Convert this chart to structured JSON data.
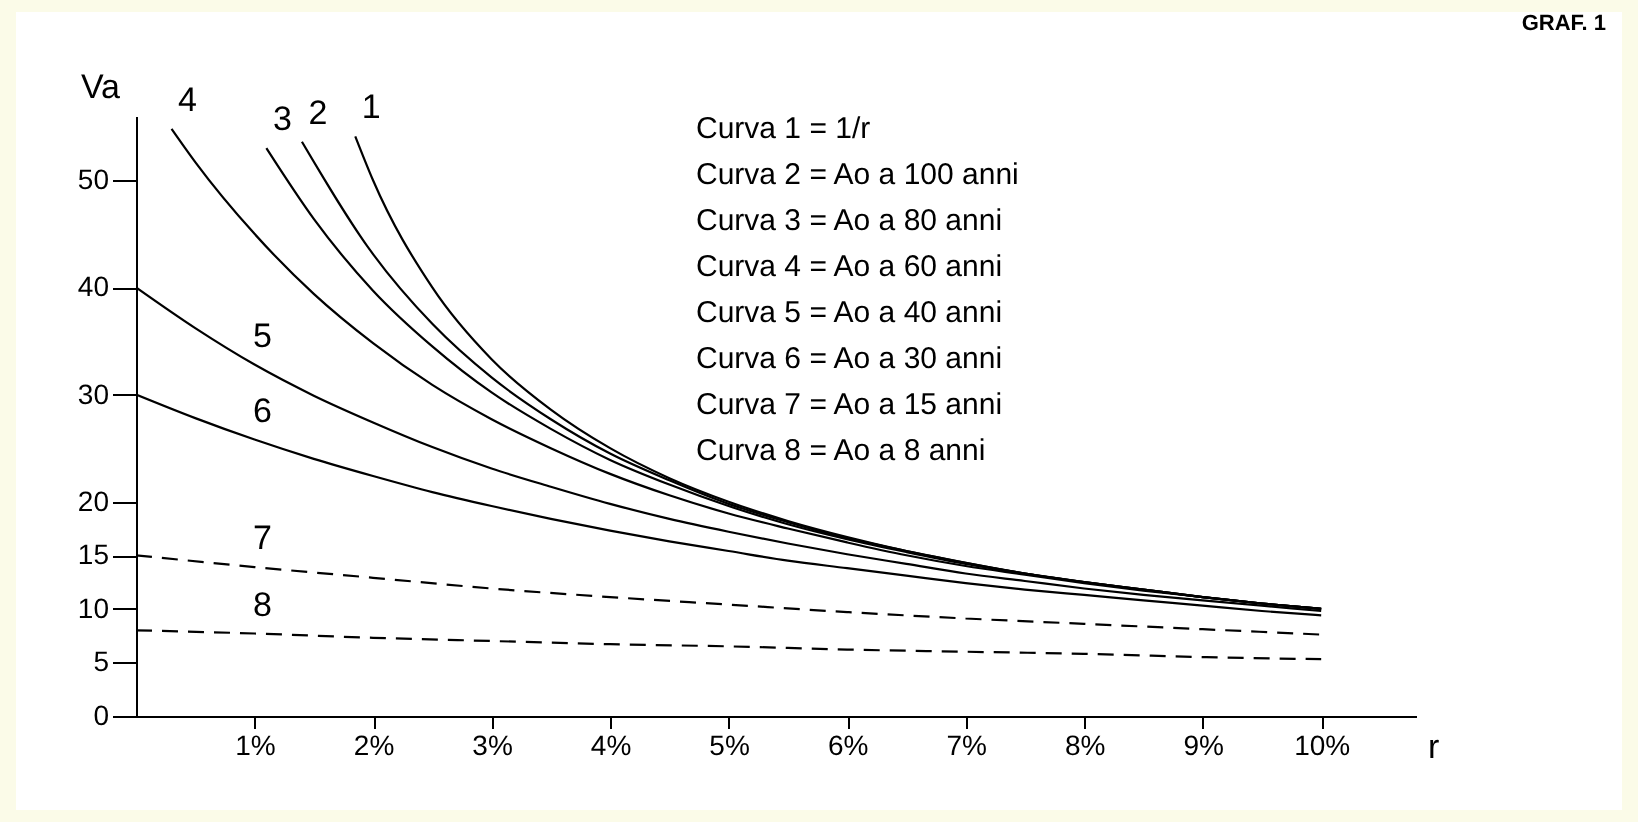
{
  "chart_data": {
    "type": "line",
    "title": "GRAF. 1",
    "xlabel": "r",
    "ylabel": "Va",
    "annotations": [
      "Curva 1 = 1/r",
      "Curva 2 = Ao a 100 anni",
      "Curva 3 = Ao a 80 anni",
      "Curva 4 = Ao a 60 anni",
      "Curva 5 = Ao a 40 anni",
      "Curva 6 = Ao a 30 anni",
      "Curva 7 = Ao a 15 anni",
      "Curva 8 = Ao a 8 anni"
    ],
    "xlim": [
      0,
      10.8
    ],
    "ylim": [
      0,
      56
    ],
    "xticks": [
      {
        "value": 1,
        "label": "1%"
      },
      {
        "value": 2,
        "label": "2%"
      },
      {
        "value": 3,
        "label": "3%"
      },
      {
        "value": 4,
        "label": "4%"
      },
      {
        "value": 5,
        "label": "5%"
      },
      {
        "value": 6,
        "label": "6%"
      },
      {
        "value": 7,
        "label": "7%"
      },
      {
        "value": 8,
        "label": "8%"
      },
      {
        "value": 9,
        "label": "9%"
      },
      {
        "value": 10,
        "label": "10%"
      }
    ],
    "yticks": [
      0,
      5,
      10,
      15,
      20,
      30,
      40,
      50
    ],
    "grid": false,
    "legend": false,
    "marker": "none",
    "series": [
      {
        "name": "1",
        "color": "#000000",
        "line_style": "solid",
        "x": [
          1.85,
          2,
          2.5,
          3,
          3.5,
          4,
          4.5,
          5,
          5.5,
          6,
          6.5,
          7,
          7.5,
          8,
          8.5,
          9,
          9.5,
          10
        ],
        "values": [
          54.1,
          50,
          40,
          33.3,
          28.6,
          25,
          22.2,
          20,
          18.2,
          16.7,
          15.4,
          14.3,
          13.3,
          12.5,
          11.8,
          11.1,
          10.5,
          10
        ]
      },
      {
        "name": "2",
        "color": "#000000",
        "line_style": "solid",
        "x": [
          1.4,
          2,
          2.5,
          3,
          3.5,
          4,
          4.5,
          5,
          5.5,
          6,
          6.5,
          7,
          7.5,
          8,
          8.5,
          9,
          9.5,
          10
        ],
        "values": [
          53.6,
          43.1,
          36.6,
          31.6,
          27.7,
          24.5,
          22,
          19.8,
          18.1,
          16.6,
          15.4,
          14.3,
          13.3,
          12.5,
          11.8,
          11.1,
          10.5,
          10
        ]
      },
      {
        "name": "3",
        "color": "#000000",
        "line_style": "solid",
        "x": [
          1.1,
          1.5,
          2,
          2.5,
          3,
          3.5,
          4,
          4.5,
          5,
          5.5,
          6,
          6.5,
          7,
          7.5,
          8,
          8.5,
          9,
          9.5,
          10
        ],
        "values": [
          53,
          46.4,
          39.7,
          34.5,
          30.2,
          26.8,
          23.9,
          21.6,
          19.6,
          17.9,
          16.5,
          15.3,
          14.2,
          13.3,
          12.5,
          11.8,
          11.1,
          10.5,
          10
        ]
      },
      {
        "name": "4",
        "color": "#000000",
        "line_style": "solid",
        "x": [
          0.3,
          0.5,
          1,
          1.5,
          2,
          2.5,
          3,
          3.5,
          4,
          4.5,
          5,
          5.5,
          6,
          6.5,
          7,
          7.5,
          8,
          8.5,
          9,
          9.5,
          10
        ],
        "values": [
          54.8,
          51.7,
          45,
          39.4,
          34.8,
          30.9,
          27.7,
          25,
          22.6,
          20.6,
          18.9,
          17.5,
          16.2,
          15,
          14,
          13.2,
          12.4,
          11.7,
          11.1,
          10.5,
          10
        ]
      },
      {
        "name": "5",
        "color": "#000000",
        "line_style": "solid",
        "x": [
          0,
          0.5,
          1,
          1.5,
          2,
          2.5,
          3,
          3.5,
          4,
          4.5,
          5,
          5.5,
          6,
          6.5,
          7,
          7.5,
          8,
          8.5,
          9,
          9.5,
          10
        ],
        "values": [
          40,
          36.2,
          32.8,
          29.9,
          27.4,
          25.1,
          23.1,
          21.4,
          19.8,
          18.4,
          17.2,
          16.1,
          15.1,
          14.2,
          13.3,
          12.6,
          11.9,
          11.3,
          10.8,
          10.3,
          9.8
        ]
      },
      {
        "name": "6",
        "color": "#000000",
        "line_style": "solid",
        "x": [
          0,
          0.5,
          1,
          1.5,
          2,
          2.5,
          3,
          3.5,
          4,
          4.5,
          5,
          5.5,
          6,
          6.5,
          7,
          7.5,
          8,
          8.5,
          9,
          9.5,
          10
        ],
        "values": [
          30,
          27.8,
          25.8,
          24,
          22.4,
          20.9,
          19.6,
          18.4,
          17.3,
          16.3,
          15.4,
          14.5,
          13.8,
          13.1,
          12.4,
          11.8,
          11.3,
          10.8,
          10.3,
          9.8,
          9.4
        ]
      },
      {
        "name": "7",
        "color": "#000000",
        "line_style": "dashed",
        "x": [
          0,
          1,
          2,
          3,
          4,
          5,
          6,
          7,
          8,
          9,
          10
        ],
        "values": [
          15,
          13.9,
          12.9,
          11.9,
          11.1,
          10.4,
          9.7,
          9.1,
          8.6,
          8.1,
          7.6
        ]
      },
      {
        "name": "8",
        "color": "#000000",
        "line_style": "dashed",
        "x": [
          0,
          1,
          2,
          3,
          4,
          5,
          6,
          7,
          8,
          9,
          10
        ],
        "values": [
          8,
          7.7,
          7.3,
          7,
          6.7,
          6.5,
          6.2,
          6,
          5.8,
          5.5,
          5.3
        ]
      }
    ]
  }
}
